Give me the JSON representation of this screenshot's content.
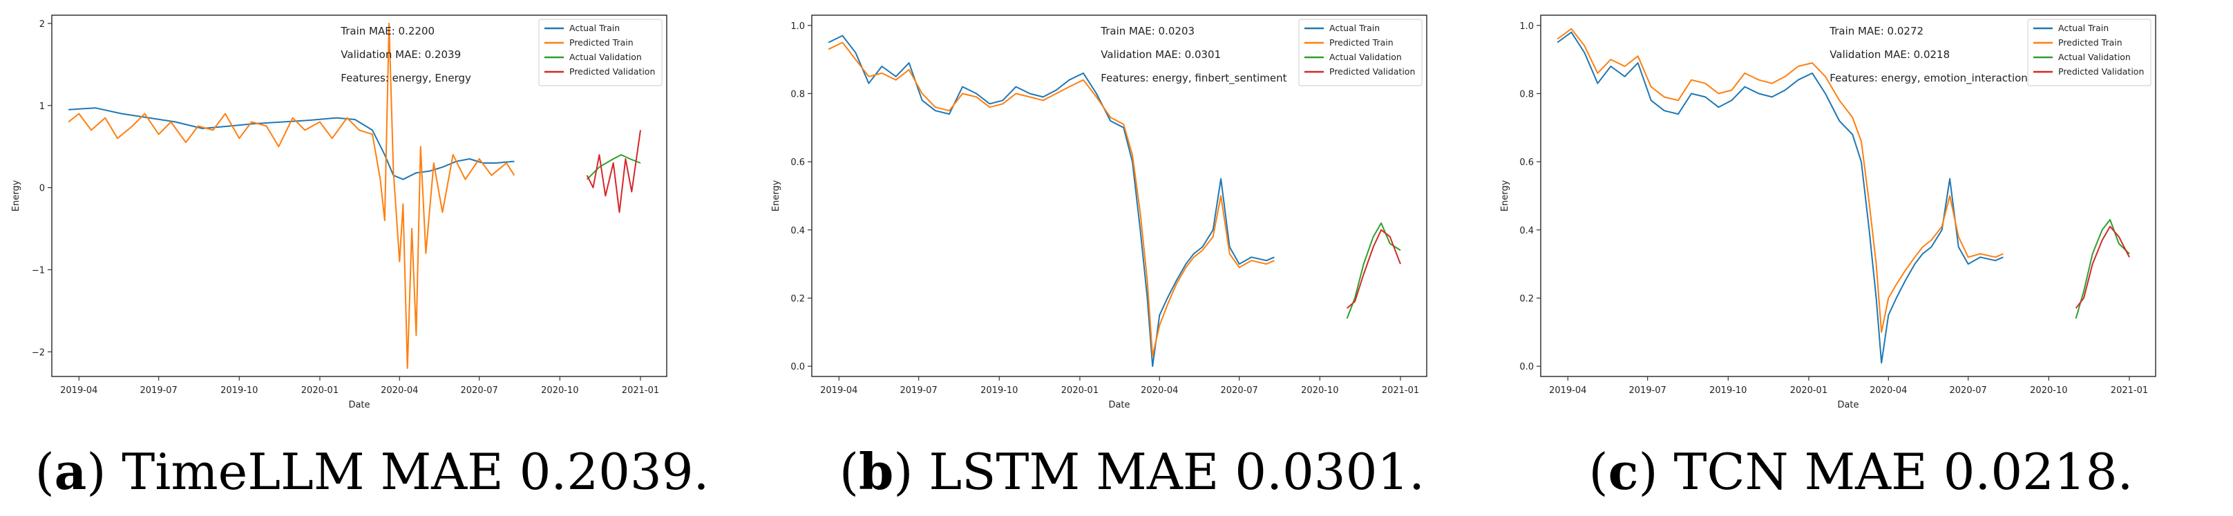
{
  "colors": {
    "actual_train": "#1f77b4",
    "predicted_train": "#ff7f0e",
    "actual_validation": "#2ca02c",
    "predicted_validation": "#d62728"
  },
  "chart_data": [
    {
      "type": "line",
      "caption_letter": "a",
      "caption_rest": ") TimeLLM MAE 0.2039.",
      "metrics": [
        "Train MAE: 0.2200",
        "Validation MAE: 0.2039",
        "Features: energy, Energy"
      ],
      "xlabel": "Date",
      "ylabel": "Energy",
      "x_ticks": [
        "2019-04",
        "2019-07",
        "2019-10",
        "2020-01",
        "2020-04",
        "2020-07",
        "2020-10",
        "2021-01"
      ],
      "y_ticks": [
        -2,
        -1,
        0,
        1,
        2
      ],
      "ylim": [
        -2.3,
        2.1
      ],
      "legend": [
        "Actual Train",
        "Predicted Train",
        "Actual Validation",
        "Predicted Validation"
      ],
      "legend_position": "top-right",
      "series": [
        {
          "name": "Actual Train",
          "x": [
            "2019-03-20",
            "2019-04-20",
            "2019-05-20",
            "2019-06-20",
            "2019-07-20",
            "2019-08-20",
            "2019-09-20",
            "2019-10-20",
            "2019-11-20",
            "2019-12-20",
            "2020-01-20",
            "2020-02-10",
            "2020-03-01",
            "2020-03-15",
            "2020-03-25",
            "2020-04-05",
            "2020-04-20",
            "2020-05-05",
            "2020-05-20",
            "2020-06-05",
            "2020-06-20",
            "2020-07-05",
            "2020-07-20",
            "2020-08-10"
          ],
          "y": [
            0.95,
            0.97,
            0.9,
            0.85,
            0.8,
            0.72,
            0.75,
            0.78,
            0.8,
            0.82,
            0.85,
            0.83,
            0.7,
            0.4,
            0.15,
            0.1,
            0.18,
            0.2,
            0.25,
            0.32,
            0.35,
            0.3,
            0.3,
            0.32
          ]
        },
        {
          "name": "Predicted Train",
          "x": [
            "2019-03-20",
            "2019-04-01",
            "2019-04-15",
            "2019-05-01",
            "2019-05-15",
            "2019-06-01",
            "2019-06-15",
            "2019-07-01",
            "2019-07-15",
            "2019-08-01",
            "2019-08-15",
            "2019-09-01",
            "2019-09-15",
            "2019-10-01",
            "2019-10-15",
            "2019-11-01",
            "2019-11-15",
            "2019-12-01",
            "2019-12-15",
            "2020-01-01",
            "2020-01-15",
            "2020-02-01",
            "2020-02-15",
            "2020-03-01",
            "2020-03-10",
            "2020-03-15",
            "2020-03-20",
            "2020-03-25",
            "2020-04-01",
            "2020-04-05",
            "2020-04-10",
            "2020-04-15",
            "2020-04-20",
            "2020-04-25",
            "2020-05-01",
            "2020-05-10",
            "2020-05-20",
            "2020-06-01",
            "2020-06-15",
            "2020-07-01",
            "2020-07-15",
            "2020-08-01",
            "2020-08-10"
          ],
          "y": [
            0.8,
            0.9,
            0.7,
            0.85,
            0.6,
            0.75,
            0.9,
            0.65,
            0.8,
            0.55,
            0.75,
            0.7,
            0.9,
            0.6,
            0.8,
            0.75,
            0.5,
            0.85,
            0.7,
            0.8,
            0.6,
            0.85,
            0.7,
            0.65,
            0.1,
            -0.4,
            2.0,
            0.2,
            -0.9,
            -0.2,
            -2.2,
            -0.5,
            -1.8,
            0.5,
            -0.8,
            0.3,
            -0.3,
            0.4,
            0.1,
            0.35,
            0.15,
            0.3,
            0.15
          ]
        },
        {
          "name": "Actual Validation",
          "x": [
            "2020-11-01",
            "2020-11-15",
            "2020-12-01",
            "2020-12-10",
            "2020-12-20",
            "2021-01-01"
          ],
          "y": [
            0.1,
            0.25,
            0.35,
            0.4,
            0.35,
            0.3
          ]
        },
        {
          "name": "Predicted Validation",
          "x": [
            "2020-11-01",
            "2020-11-08",
            "2020-11-15",
            "2020-11-22",
            "2020-12-01",
            "2020-12-08",
            "2020-12-15",
            "2020-12-22",
            "2021-01-01"
          ],
          "y": [
            0.15,
            0.0,
            0.4,
            -0.1,
            0.3,
            -0.3,
            0.35,
            -0.05,
            0.7
          ]
        }
      ]
    },
    {
      "type": "line",
      "caption_letter": "b",
      "caption_rest": ") LSTM MAE 0.0301.",
      "metrics": [
        "Train MAE: 0.0203",
        "Validation MAE: 0.0301",
        "Features: energy, finbert_sentiment"
      ],
      "xlabel": "Date",
      "ylabel": "Energy",
      "x_ticks": [
        "2019-04",
        "2019-07",
        "2019-10",
        "2020-01",
        "2020-04",
        "2020-07",
        "2020-10",
        "2021-01"
      ],
      "y_ticks": [
        0.0,
        0.2,
        0.4,
        0.6,
        0.8,
        1.0
      ],
      "ylim": [
        -0.03,
        1.03
      ],
      "legend": [
        "Actual Train",
        "Predicted Train",
        "Actual Validation",
        "Predicted Validation"
      ],
      "legend_position": "top-right",
      "series": [
        {
          "name": "Actual Train",
          "x": [
            "2019-03-20",
            "2019-04-05",
            "2019-04-20",
            "2019-05-05",
            "2019-05-20",
            "2019-06-05",
            "2019-06-20",
            "2019-07-05",
            "2019-07-20",
            "2019-08-05",
            "2019-08-20",
            "2019-09-05",
            "2019-09-20",
            "2019-10-05",
            "2019-10-20",
            "2019-11-05",
            "2019-11-20",
            "2019-12-05",
            "2019-12-20",
            "2020-01-05",
            "2020-01-20",
            "2020-02-05",
            "2020-02-20",
            "2020-03-01",
            "2020-03-10",
            "2020-03-18",
            "2020-03-24",
            "2020-04-01",
            "2020-04-10",
            "2020-04-20",
            "2020-05-01",
            "2020-05-10",
            "2020-05-20",
            "2020-06-01",
            "2020-06-10",
            "2020-06-20",
            "2020-07-01",
            "2020-07-15",
            "2020-08-01",
            "2020-08-10"
          ],
          "y": [
            0.95,
            0.97,
            0.92,
            0.83,
            0.88,
            0.85,
            0.89,
            0.78,
            0.75,
            0.74,
            0.82,
            0.8,
            0.77,
            0.78,
            0.82,
            0.8,
            0.79,
            0.81,
            0.84,
            0.86,
            0.8,
            0.72,
            0.7,
            0.6,
            0.4,
            0.2,
            0.0,
            0.15,
            0.2,
            0.25,
            0.3,
            0.33,
            0.35,
            0.4,
            0.55,
            0.35,
            0.3,
            0.32,
            0.31,
            0.32
          ]
        },
        {
          "name": "Predicted Train",
          "x": [
            "2019-03-20",
            "2019-04-05",
            "2019-04-20",
            "2019-05-05",
            "2019-05-20",
            "2019-06-05",
            "2019-06-20",
            "2019-07-05",
            "2019-07-20",
            "2019-08-05",
            "2019-08-20",
            "2019-09-05",
            "2019-09-20",
            "2019-10-05",
            "2019-10-20",
            "2019-11-05",
            "2019-11-20",
            "2019-12-05",
            "2019-12-20",
            "2020-01-05",
            "2020-01-20",
            "2020-02-05",
            "2020-02-20",
            "2020-03-01",
            "2020-03-10",
            "2020-03-18",
            "2020-03-24",
            "2020-04-01",
            "2020-04-10",
            "2020-04-20",
            "2020-05-01",
            "2020-05-10",
            "2020-05-20",
            "2020-06-01",
            "2020-06-10",
            "2020-06-20",
            "2020-07-01",
            "2020-07-15",
            "2020-08-01",
            "2020-08-10"
          ],
          "y": [
            0.93,
            0.95,
            0.9,
            0.85,
            0.86,
            0.84,
            0.87,
            0.8,
            0.76,
            0.75,
            0.8,
            0.79,
            0.76,
            0.77,
            0.8,
            0.79,
            0.78,
            0.8,
            0.82,
            0.84,
            0.79,
            0.73,
            0.71,
            0.62,
            0.45,
            0.25,
            0.03,
            0.12,
            0.18,
            0.24,
            0.29,
            0.32,
            0.34,
            0.38,
            0.5,
            0.33,
            0.29,
            0.31,
            0.3,
            0.31
          ]
        },
        {
          "name": "Actual Validation",
          "x": [
            "2020-11-01",
            "2020-11-10",
            "2020-11-20",
            "2020-12-01",
            "2020-12-10",
            "2020-12-20",
            "2021-01-01"
          ],
          "y": [
            0.14,
            0.2,
            0.3,
            0.38,
            0.42,
            0.36,
            0.34
          ]
        },
        {
          "name": "Predicted Validation",
          "x": [
            "2020-11-01",
            "2020-11-10",
            "2020-11-20",
            "2020-12-01",
            "2020-12-10",
            "2020-12-20",
            "2021-01-01"
          ],
          "y": [
            0.17,
            0.19,
            0.27,
            0.35,
            0.4,
            0.38,
            0.3
          ]
        }
      ]
    },
    {
      "type": "line",
      "caption_letter": "c",
      "caption_rest": ") TCN MAE 0.0218.",
      "metrics": [
        "Train MAE: 0.0272",
        "Validation MAE: 0.0218",
        "Features: energy, emotion_interaction"
      ],
      "xlabel": "Date",
      "ylabel": "Energy",
      "x_ticks": [
        "2019-04",
        "2019-07",
        "2019-10",
        "2020-01",
        "2020-04",
        "2020-07",
        "2020-10",
        "2021-01"
      ],
      "y_ticks": [
        0.0,
        0.2,
        0.4,
        0.6,
        0.8,
        1.0
      ],
      "ylim": [
        -0.03,
        1.03
      ],
      "legend": [
        "Actual Train",
        "Predicted Train",
        "Actual Validation",
        "Predicted Validation"
      ],
      "legend_position": "top-right",
      "series": [
        {
          "name": "Actual Train",
          "x": [
            "2019-03-20",
            "2019-04-05",
            "2019-04-20",
            "2019-05-05",
            "2019-05-20",
            "2019-06-05",
            "2019-06-20",
            "2019-07-05",
            "2019-07-20",
            "2019-08-05",
            "2019-08-20",
            "2019-09-05",
            "2019-09-20",
            "2019-10-05",
            "2019-10-20",
            "2019-11-05",
            "2019-11-20",
            "2019-12-05",
            "2019-12-20",
            "2020-01-05",
            "2020-01-20",
            "2020-02-05",
            "2020-02-20",
            "2020-03-01",
            "2020-03-10",
            "2020-03-18",
            "2020-03-24",
            "2020-04-01",
            "2020-04-10",
            "2020-04-20",
            "2020-05-01",
            "2020-05-10",
            "2020-05-20",
            "2020-06-01",
            "2020-06-10",
            "2020-06-20",
            "2020-07-01",
            "2020-07-15",
            "2020-08-01",
            "2020-08-10"
          ],
          "y": [
            0.95,
            0.98,
            0.92,
            0.83,
            0.88,
            0.85,
            0.89,
            0.78,
            0.75,
            0.74,
            0.8,
            0.79,
            0.76,
            0.78,
            0.82,
            0.8,
            0.79,
            0.81,
            0.84,
            0.86,
            0.8,
            0.72,
            0.68,
            0.6,
            0.4,
            0.2,
            0.01,
            0.15,
            0.2,
            0.25,
            0.3,
            0.33,
            0.35,
            0.4,
            0.55,
            0.35,
            0.3,
            0.32,
            0.31,
            0.32
          ]
        },
        {
          "name": "Predicted Train",
          "x": [
            "2019-03-20",
            "2019-04-05",
            "2019-04-20",
            "2019-05-05",
            "2019-05-20",
            "2019-06-05",
            "2019-06-20",
            "2019-07-05",
            "2019-07-20",
            "2019-08-05",
            "2019-08-20",
            "2019-09-05",
            "2019-09-20",
            "2019-10-05",
            "2019-10-20",
            "2019-11-05",
            "2019-11-20",
            "2019-12-05",
            "2019-12-20",
            "2020-01-05",
            "2020-01-20",
            "2020-02-05",
            "2020-02-20",
            "2020-03-01",
            "2020-03-10",
            "2020-03-18",
            "2020-03-24",
            "2020-04-01",
            "2020-04-10",
            "2020-04-20",
            "2020-05-01",
            "2020-05-10",
            "2020-05-20",
            "2020-06-01",
            "2020-06-10",
            "2020-06-20",
            "2020-07-01",
            "2020-07-15",
            "2020-08-01",
            "2020-08-10"
          ],
          "y": [
            0.96,
            0.99,
            0.94,
            0.86,
            0.9,
            0.88,
            0.91,
            0.82,
            0.79,
            0.78,
            0.84,
            0.83,
            0.8,
            0.81,
            0.86,
            0.84,
            0.83,
            0.85,
            0.88,
            0.89,
            0.85,
            0.78,
            0.73,
            0.66,
            0.48,
            0.3,
            0.1,
            0.2,
            0.24,
            0.28,
            0.32,
            0.35,
            0.37,
            0.41,
            0.5,
            0.38,
            0.32,
            0.33,
            0.32,
            0.33
          ]
        },
        {
          "name": "Actual Validation",
          "x": [
            "2020-11-01",
            "2020-11-10",
            "2020-11-20",
            "2020-12-01",
            "2020-12-10",
            "2020-12-20",
            "2021-01-01"
          ],
          "y": [
            0.14,
            0.22,
            0.33,
            0.4,
            0.43,
            0.36,
            0.33
          ]
        },
        {
          "name": "Predicted Validation",
          "x": [
            "2020-11-01",
            "2020-11-10",
            "2020-11-20",
            "2020-12-01",
            "2020-12-10",
            "2020-12-20",
            "2021-01-01"
          ],
          "y": [
            0.17,
            0.2,
            0.3,
            0.37,
            0.41,
            0.38,
            0.32
          ]
        }
      ]
    }
  ]
}
